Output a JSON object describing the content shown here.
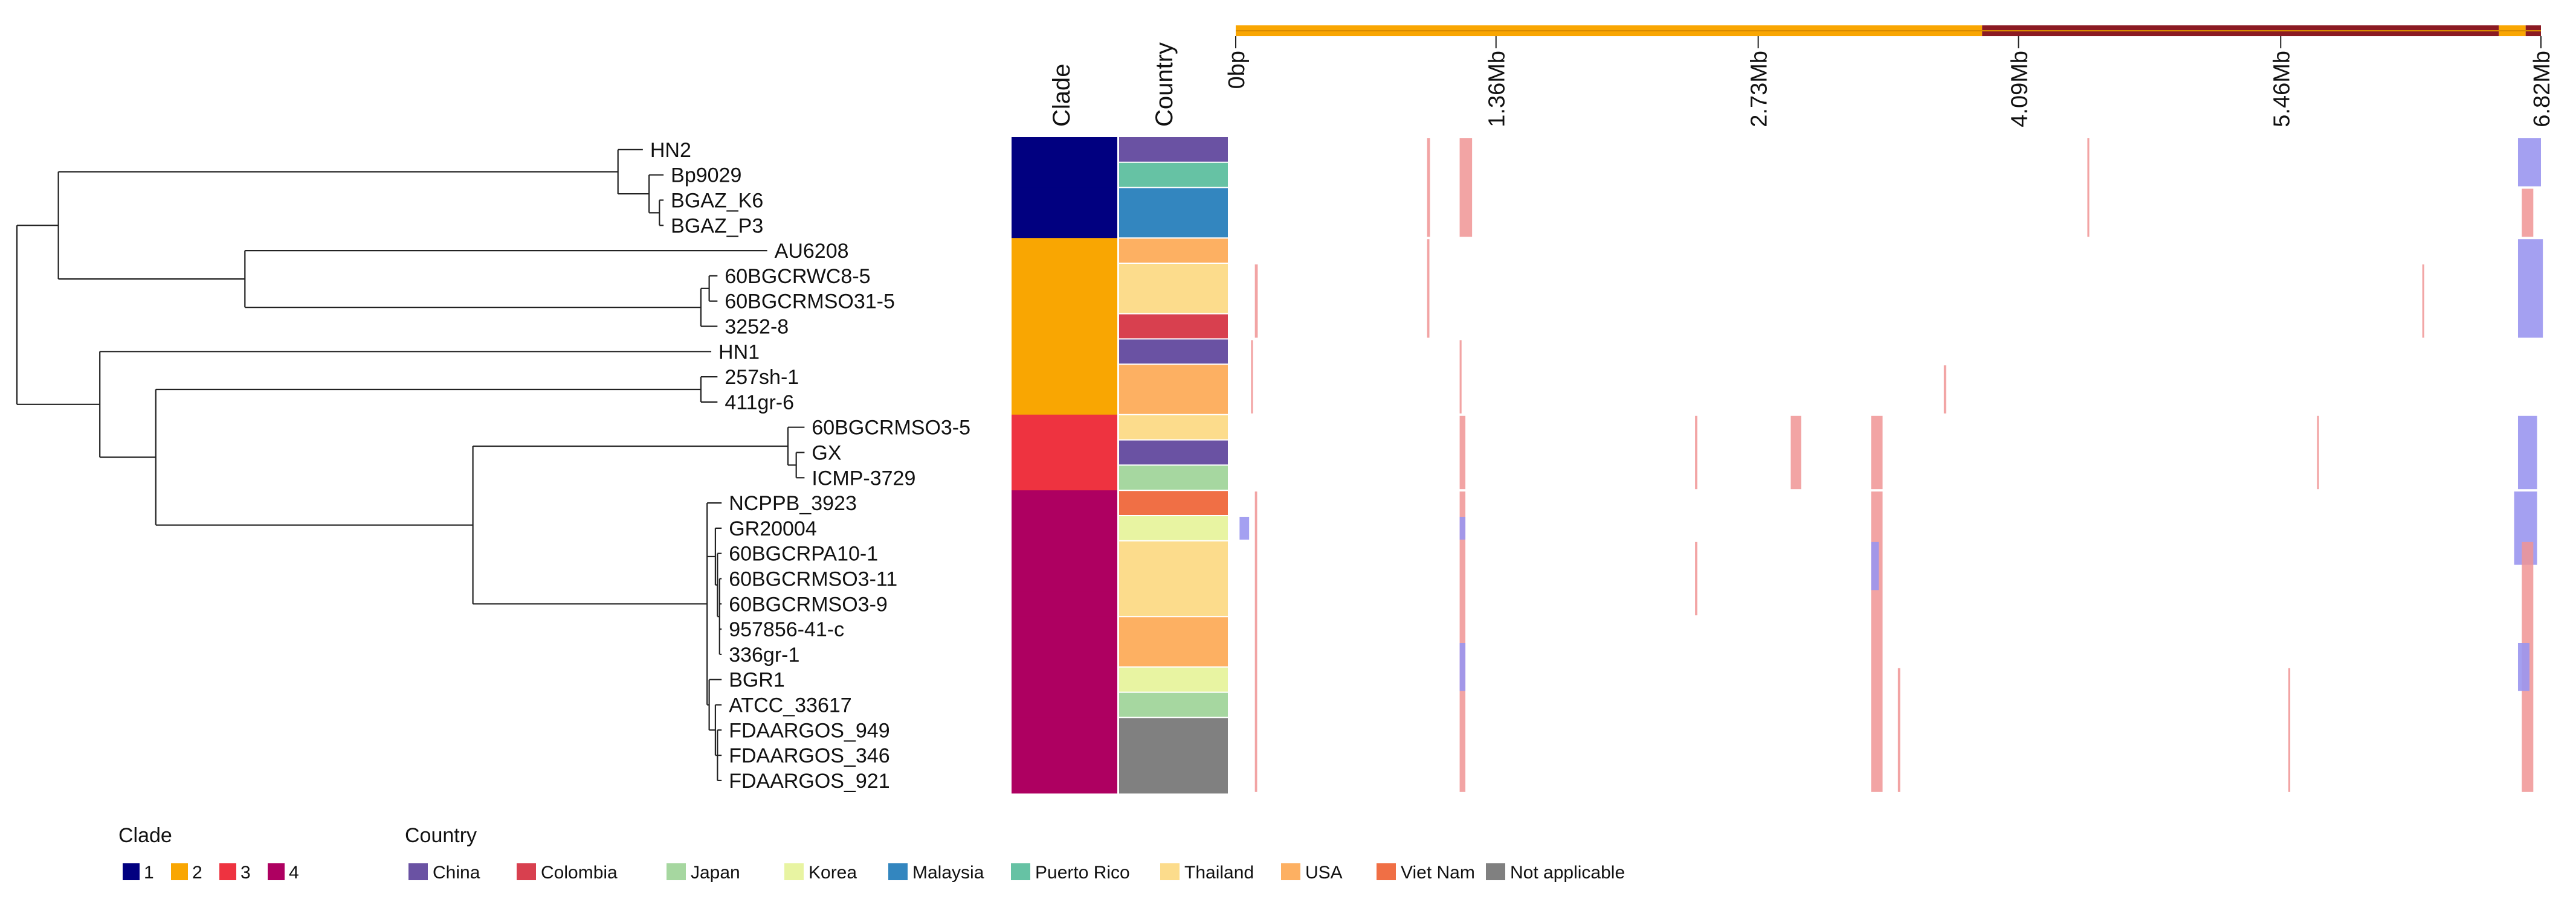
{
  "headers": {
    "clade": "Clade",
    "country": "Country"
  },
  "colors": {
    "clades": {
      "1": "#010080",
      "2": "#f9a602",
      "3": "#ee3340",
      "4": "#ae0061"
    },
    "countries": {
      "China": "#6a52a3",
      "Colombia": "#d8404f",
      "Japan": "#a6d7a0",
      "Korea": "#e8f4a2",
      "Malaysia": "#3386bf",
      "Puerto Rico": "#66c2a4",
      "Thailand": "#fcdc8c",
      "USA": "#fdb062",
      "Viet Nam": "#f06f45",
      "Not applicable": "#808080"
    },
    "genome_bar": {
      "main": "#f9a602",
      "mid": "#8b1a22",
      "end": "#8b1a22"
    },
    "gain": "#f09494",
    "loss": "#9a96f0",
    "tree": "#222222"
  },
  "tree": {
    "id": "root",
    "x": 0,
    "children": [
      {
        "id": "A",
        "x": 0.2,
        "children": [
          {
            "id": "A1",
            "x": 2.9,
            "children": [
              {
                "id": "HN2",
                "x": 3.02
              },
              {
                "id": "A2",
                "x": 3.05,
                "children": [
                  {
                    "id": "Bp9029",
                    "x": 3.12
                  },
                  {
                    "id": "A3",
                    "x": 3.1,
                    "children": [
                      {
                        "id": "BGAZ_K6",
                        "x": 3.12
                      },
                      {
                        "id": "BGAZ_P3",
                        "x": 3.12
                      }
                    ]
                  }
                ]
              }
            ]
          },
          {
            "id": "B",
            "x": 1.1,
            "children": [
              {
                "id": "AU6208",
                "x": 3.62
              },
              {
                "id": "B1",
                "x": 3.3,
                "children": [
                  {
                    "id": "B2",
                    "x": 3.34,
                    "children": [
                      {
                        "id": "60BGCRWC8-5",
                        "x": 3.38
                      },
                      {
                        "id": "60BGCRMSO31-5",
                        "x": 3.38
                      }
                    ]
                  },
                  {
                    "id": "3252-8",
                    "x": 3.38
                  }
                ]
              }
            ]
          }
        ]
      },
      {
        "id": "C",
        "x": 0.4,
        "children": [
          {
            "id": "HN1",
            "x": 3.35
          },
          {
            "id": "D",
            "x": 0.67,
            "children": [
              {
                "id": "D1",
                "x": 3.3,
                "children": [
                  {
                    "id": "257sh-1",
                    "x": 3.38
                  },
                  {
                    "id": "411gr-6",
                    "x": 3.38
                  }
                ]
              },
              {
                "id": "E",
                "x": 2.2,
                "children": [
                  {
                    "id": "E1",
                    "x": 3.72,
                    "children": [
                      {
                        "id": "60BGCRMSO3-5",
                        "x": 3.8
                      },
                      {
                        "id": "E2",
                        "x": 3.76,
                        "children": [
                          {
                            "id": "GX",
                            "x": 3.8
                          },
                          {
                            "id": "ICMP-3729",
                            "x": 3.8
                          }
                        ]
                      }
                    ]
                  },
                  {
                    "id": "F",
                    "x": 3.33,
                    "children": [
                      {
                        "id": "NCPPB_3923",
                        "x": 3.4
                      },
                      {
                        "id": "F1",
                        "x": 3.37,
                        "children": [
                          {
                            "id": "GR20004",
                            "x": 3.4
                          },
                          {
                            "id": "F2",
                            "x": 3.38,
                            "children": [
                              {
                                "id": "60BGCRPA10-1",
                                "x": 3.4
                              },
                              {
                                "id": "F3",
                                "x": 3.39,
                                "children": [
                                  {
                                    "id": "60BGCRMSO3-11",
                                    "x": 3.4
                                  },
                                  {
                                    "id": "60BGCRMSO3-9",
                                    "x": 3.4
                                  },
                                  {
                                    "id": "957856-41-c",
                                    "x": 3.4
                                  },
                                  {
                                    "id": "336gr-1",
                                    "x": 3.4
                                  }
                                ]
                              }
                            ]
                          }
                        ]
                      },
                      {
                        "id": "G",
                        "x": 3.34,
                        "children": [
                          {
                            "id": "BGR1",
                            "x": 3.4
                          },
                          {
                            "id": "G1",
                            "x": 3.37,
                            "children": [
                              {
                                "id": "ATCC_33617",
                                "x": 3.4
                              },
                              {
                                "id": "G2",
                                "x": 3.38,
                                "children": [
                                  {
                                    "id": "FDAARGOS_949",
                                    "x": 3.4
                                  },
                                  {
                                    "id": "FDAARGOS_346",
                                    "x": 3.4
                                  },
                                  {
                                    "id": "FDAARGOS_921",
                                    "x": 3.4
                                  }
                                ]
                              }
                            ]
                          }
                        ]
                      }
                    ]
                  }
                ]
              }
            ]
          }
        ]
      }
    ]
  },
  "strains": [
    {
      "name": "HN2",
      "clade": "1",
      "country": "China"
    },
    {
      "name": "Bp9029",
      "clade": "1",
      "country": "Puerto Rico"
    },
    {
      "name": "BGAZ_K6",
      "clade": "1",
      "country": "Malaysia"
    },
    {
      "name": "BGAZ_P3",
      "clade": "1",
      "country": "Malaysia"
    },
    {
      "name": "AU6208",
      "clade": "2",
      "country": "USA"
    },
    {
      "name": "60BGCRWC8-5",
      "clade": "2",
      "country": "Thailand"
    },
    {
      "name": "60BGCRMSO31-5",
      "clade": "2",
      "country": "Thailand"
    },
    {
      "name": "3252-8",
      "clade": "2",
      "country": "Colombia"
    },
    {
      "name": "HN1",
      "clade": "2",
      "country": "China"
    },
    {
      "name": "257sh-1",
      "clade": "2",
      "country": "USA"
    },
    {
      "name": "411gr-6",
      "clade": "2",
      "country": "USA"
    },
    {
      "name": "60BGCRMSO3-5",
      "clade": "3",
      "country": "Thailand"
    },
    {
      "name": "GX",
      "clade": "3",
      "country": "China"
    },
    {
      "name": "ICMP-3729",
      "clade": "3",
      "country": "Japan"
    },
    {
      "name": "NCPPB_3923",
      "clade": "4",
      "country": "Viet Nam"
    },
    {
      "name": "GR20004",
      "clade": "4",
      "country": "Korea"
    },
    {
      "name": "60BGCRPA10-1",
      "clade": "4",
      "country": "Thailand"
    },
    {
      "name": "60BGCRMSO3-11",
      "clade": "4",
      "country": "Thailand"
    },
    {
      "name": "60BGCRMSO3-9",
      "clade": "4",
      "country": "Thailand"
    },
    {
      "name": "957856-41-c",
      "clade": "4",
      "country": "USA"
    },
    {
      "name": "336gr-1",
      "clade": "4",
      "country": "USA"
    },
    {
      "name": "BGR1",
      "clade": "4",
      "country": "Korea"
    },
    {
      "name": "ATCC_33617",
      "clade": "4",
      "country": "Japan"
    },
    {
      "name": "FDAARGOS_949",
      "clade": "4",
      "country": "Not applicable"
    },
    {
      "name": "FDAARGOS_346",
      "clade": "4",
      "country": "Not applicable"
    },
    {
      "name": "FDAARGOS_921",
      "clade": "4",
      "country": "Not applicable"
    }
  ],
  "genome": {
    "length_mb": 6.82,
    "ticks": [
      {
        "label": "0bp",
        "pos": 0
      },
      {
        "label": "1.36Mb",
        "pos": 1.36
      },
      {
        "label": "2.73Mb",
        "pos": 2.73
      },
      {
        "label": "4.09Mb",
        "pos": 4.09
      },
      {
        "label": "5.46Mb",
        "pos": 5.46
      },
      {
        "label": "6.82Mb",
        "pos": 6.82
      }
    ],
    "segments": [
      {
        "start": 0,
        "end": 3.9,
        "color_key": "main"
      },
      {
        "start": 3.9,
        "end": 6.6,
        "color_key": "mid"
      },
      {
        "start": 6.6,
        "end": 6.74,
        "color_key": "main"
      },
      {
        "start": 6.74,
        "end": 6.82,
        "color_key": "end"
      }
    ]
  },
  "features": [
    {
      "type": "gain",
      "start": 1.0,
      "end": 1.015,
      "rows": [
        0,
        3
      ]
    },
    {
      "type": "gain",
      "start": 1.17,
      "end": 1.235,
      "rows": [
        0,
        3
      ]
    },
    {
      "type": "gain",
      "start": 4.45,
      "end": 4.46,
      "rows": [
        0,
        3
      ]
    },
    {
      "type": "loss",
      "start": 6.7,
      "end": 6.82,
      "rows": [
        0,
        1
      ]
    },
    {
      "type": "gain",
      "start": 6.72,
      "end": 6.78,
      "rows": [
        2,
        3
      ]
    },
    {
      "type": "gain",
      "start": 0.1,
      "end": 0.115,
      "rows": [
        5,
        7
      ]
    },
    {
      "type": "gain",
      "start": 1.0,
      "end": 1.012,
      "rows": [
        4,
        7
      ]
    },
    {
      "type": "gain",
      "start": 6.2,
      "end": 6.21,
      "rows": [
        5,
        7
      ]
    },
    {
      "type": "loss",
      "start": 6.7,
      "end": 6.83,
      "rows": [
        4,
        7
      ]
    },
    {
      "type": "gain",
      "start": 1.17,
      "end": 1.18,
      "rows": [
        8,
        10
      ]
    },
    {
      "type": "gain",
      "start": 3.7,
      "end": 3.712,
      "rows": [
        9,
        10
      ]
    },
    {
      "type": "gain",
      "start": 0.08,
      "end": 0.09,
      "rows": [
        8,
        10
      ]
    },
    {
      "type": "gain",
      "start": 1.17,
      "end": 1.2,
      "rows": [
        11,
        13
      ]
    },
    {
      "type": "gain",
      "start": 2.4,
      "end": 2.412,
      "rows": [
        11,
        13
      ]
    },
    {
      "type": "gain",
      "start": 2.9,
      "end": 2.955,
      "rows": [
        11,
        13
      ]
    },
    {
      "type": "gain",
      "start": 3.32,
      "end": 3.38,
      "rows": [
        11,
        13
      ]
    },
    {
      "type": "gain",
      "start": 5.65,
      "end": 5.66,
      "rows": [
        11,
        13
      ]
    },
    {
      "type": "loss",
      "start": 6.7,
      "end": 6.8,
      "rows": [
        11,
        13
      ]
    },
    {
      "type": "loss",
      "start": 0.02,
      "end": 0.07,
      "rows": [
        15,
        15
      ]
    },
    {
      "type": "gain",
      "start": 0.1,
      "end": 0.112,
      "rows": [
        14,
        25
      ]
    },
    {
      "type": "gain",
      "start": 1.17,
      "end": 1.2,
      "rows": [
        14,
        25
      ]
    },
    {
      "type": "loss",
      "start": 1.17,
      "end": 1.2,
      "rows": [
        15,
        15
      ]
    },
    {
      "type": "loss",
      "start": 1.17,
      "end": 1.2,
      "rows": [
        20,
        21
      ]
    },
    {
      "type": "gain",
      "start": 2.4,
      "end": 2.412,
      "rows": [
        16,
        18
      ]
    },
    {
      "type": "gain",
      "start": 3.32,
      "end": 3.38,
      "rows": [
        14,
        25
      ]
    },
    {
      "type": "loss",
      "start": 3.32,
      "end": 3.36,
      "rows": [
        16,
        17
      ]
    },
    {
      "type": "gain",
      "start": 3.46,
      "end": 3.472,
      "rows": [
        21,
        25
      ]
    },
    {
      "type": "gain",
      "start": 5.5,
      "end": 5.51,
      "rows": [
        21,
        25
      ]
    },
    {
      "type": "loss",
      "start": 6.68,
      "end": 6.8,
      "rows": [
        14,
        16
      ]
    },
    {
      "type": "gain",
      "start": 6.72,
      "end": 6.78,
      "rows": [
        16,
        25
      ]
    },
    {
      "type": "loss",
      "start": 6.7,
      "end": 6.76,
      "rows": [
        20,
        21
      ]
    }
  ],
  "legend": {
    "clade_title": "Clade",
    "clade_items": [
      {
        "label": "1",
        "key": "1"
      },
      {
        "label": "2",
        "key": "2"
      },
      {
        "label": "3",
        "key": "3"
      },
      {
        "label": "4",
        "key": "4"
      }
    ],
    "country_title": "Country",
    "country_items": [
      {
        "label": "China"
      },
      {
        "label": "Colombia"
      },
      {
        "label": "Japan"
      },
      {
        "label": "Korea"
      },
      {
        "label": "Malaysia"
      },
      {
        "label": "Puerto Rico"
      },
      {
        "label": "Thailand"
      },
      {
        "label": "USA"
      },
      {
        "label": "Viet Nam"
      },
      {
        "label": "Not applicable"
      }
    ]
  }
}
